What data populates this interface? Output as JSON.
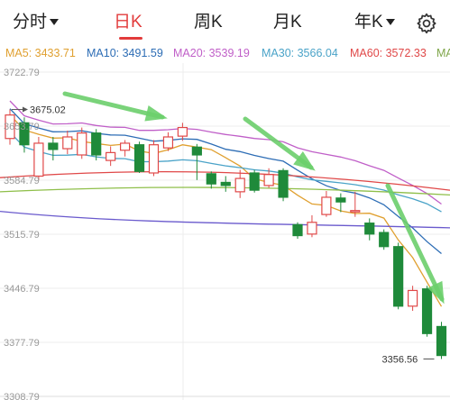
{
  "tabs": [
    {
      "label": "分时",
      "has_caret": true
    },
    {
      "label": "日K",
      "active": true
    },
    {
      "label": "周K"
    },
    {
      "label": "月K"
    },
    {
      "label": "年K",
      "has_caret": true
    }
  ],
  "settings_icon": "gear-icon",
  "ma_legend": [
    {
      "label": "MA5: 3433.71",
      "color": "#e0a030"
    },
    {
      "label": "MA10: 3491.59",
      "color": "#2d6db5"
    },
    {
      "label": "MA20: 3539.19",
      "color": "#c05fc8"
    },
    {
      "label": "MA30: 3566.04",
      "color": "#4aa3c8"
    },
    {
      "label": "MA60: 3572.33",
      "color": "#e04848"
    },
    {
      "label": "MA",
      "color": "#7fa64a"
    }
  ],
  "chart_data": {
    "type": "candlestick",
    "y_ticks": [
      "3722.79",
      "3653.79",
      "3584.79",
      "3515.79",
      "3446.79",
      "3377.79",
      "3308.79"
    ],
    "ylim": [
      3308.79,
      3722.79
    ],
    "annotations": [
      {
        "label": "3675.02",
        "value": 3675.02,
        "index": 0
      },
      {
        "label": "3356.56",
        "value": 3356.56,
        "index": 26
      }
    ],
    "up_color": "#e04848",
    "down_color": "#1f8a3a",
    "candles": [
      {
        "o": 3638,
        "c": 3668,
        "h": 3675.02,
        "l": 3630
      },
      {
        "o": 3658,
        "c": 3630,
        "h": 3665,
        "l": 3620
      },
      {
        "o": 3590,
        "c": 3632,
        "h": 3640,
        "l": 3585
      },
      {
        "o": 3632,
        "c": 3624,
        "h": 3640,
        "l": 3610
      },
      {
        "o": 3625,
        "c": 3640,
        "h": 3648,
        "l": 3618
      },
      {
        "o": 3617,
        "c": 3645,
        "h": 3652,
        "l": 3612
      },
      {
        "o": 3645,
        "c": 3617,
        "h": 3650,
        "l": 3610
      },
      {
        "o": 3610,
        "c": 3620,
        "h": 3628,
        "l": 3603
      },
      {
        "o": 3623,
        "c": 3632,
        "h": 3636,
        "l": 3615
      },
      {
        "o": 3630,
        "c": 3596,
        "h": 3634,
        "l": 3594
      },
      {
        "o": 3594,
        "c": 3630,
        "h": 3636,
        "l": 3590
      },
      {
        "o": 3626,
        "c": 3640,
        "h": 3646,
        "l": 3622
      },
      {
        "o": 3641,
        "c": 3652,
        "h": 3658,
        "l": 3635
      },
      {
        "o": 3627,
        "c": 3617,
        "h": 3631,
        "l": 3585
      },
      {
        "o": 3593,
        "c": 3580,
        "h": 3596,
        "l": 3574
      },
      {
        "o": 3582,
        "c": 3578,
        "h": 3590,
        "l": 3570
      },
      {
        "o": 3570,
        "c": 3587,
        "h": 3598,
        "l": 3562
      },
      {
        "o": 3594,
        "c": 3572,
        "h": 3598,
        "l": 3569
      },
      {
        "o": 3578,
        "c": 3592,
        "h": 3600,
        "l": 3575
      },
      {
        "o": 3597,
        "c": 3563,
        "h": 3600,
        "l": 3558
      },
      {
        "o": 3528,
        "c": 3514,
        "h": 3531,
        "l": 3510
      },
      {
        "o": 3516,
        "c": 3531,
        "h": 3540,
        "l": 3512
      },
      {
        "o": 3541,
        "c": 3563,
        "h": 3571,
        "l": 3538
      },
      {
        "o": 3562,
        "c": 3557,
        "h": 3568,
        "l": 3544
      },
      {
        "o": 3545,
        "c": 3546,
        "h": 3570,
        "l": 3538
      },
      {
        "o": 3530,
        "c": 3516,
        "h": 3536,
        "l": 3508
      },
      {
        "o": 3518,
        "c": 3500,
        "h": 3522,
        "l": 3496
      },
      {
        "o": 3500,
        "c": 3424,
        "h": 3505,
        "l": 3420
      },
      {
        "o": 3424,
        "c": 3444,
        "h": 3450,
        "l": 3418
      },
      {
        "o": 3446,
        "c": 3389,
        "h": 3450,
        "l": 3385
      },
      {
        "o": 3398,
        "c": 3361,
        "h": 3404,
        "l": 3356.56
      }
    ]
  }
}
